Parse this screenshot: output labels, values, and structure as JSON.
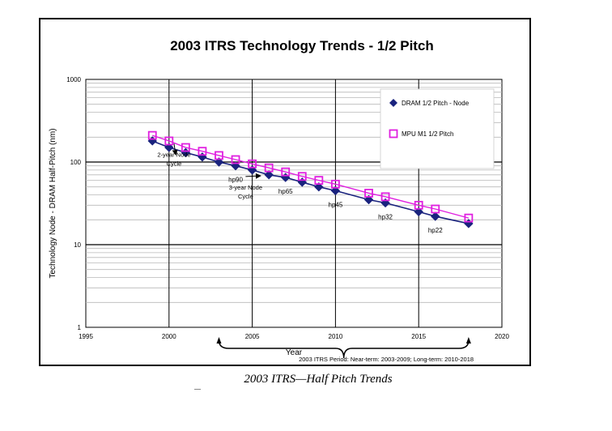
{
  "caption": "2003 ITRS—Half Pitch Trends",
  "chart_data": {
    "type": "line",
    "title": "2003 ITRS Technology Trends - 1/2 Pitch",
    "xlabel": "Year",
    "ylabel": "Technology Node - DRAM Half-Pitch (nm)",
    "xlim": [
      1995,
      2020
    ],
    "ylim": [
      1,
      1000
    ],
    "yscale": "log",
    "x_ticks": [
      "1995",
      "2000",
      "2005",
      "2010",
      "2015",
      "2020"
    ],
    "y_ticks": [
      "1",
      "10",
      "100",
      "1000"
    ],
    "grid": true,
    "legend_position": "top-right",
    "series": [
      {
        "name": "DRAM 1/2 Pitch - Node",
        "color": "#1a237e",
        "marker": "diamond",
        "x": [
          1999,
          2000,
          2001,
          2002,
          2003,
          2004,
          2005,
          2006,
          2007,
          2008,
          2009,
          2010,
          2012,
          2013,
          2015,
          2016,
          2018
        ],
        "y": [
          180,
          150,
          130,
          115,
          100,
          90,
          80,
          70,
          65,
          57,
          50,
          45,
          35,
          32,
          25,
          22,
          18
        ]
      },
      {
        "name": "MPU M1 1/2 Pitch",
        "color": "#e020e0",
        "marker": "square",
        "x": [
          1999,
          2000,
          2001,
          2002,
          2003,
          2004,
          2005,
          2006,
          2007,
          2008,
          2009,
          2010,
          2012,
          2013,
          2015,
          2016,
          2018
        ],
        "y": [
          210,
          180,
          150,
          135,
          120,
          107,
          95,
          85,
          76,
          67,
          60,
          54,
          42,
          38,
          30,
          27,
          21
        ]
      }
    ],
    "annotations": [
      {
        "text": "hp90",
        "x": 2004,
        "y": 90
      },
      {
        "text": "hp65",
        "x": 2007,
        "y": 65
      },
      {
        "text": "hp45",
        "x": 2010,
        "y": 45
      },
      {
        "text": "hp32",
        "x": 2013,
        "y": 32
      },
      {
        "text": "hp22",
        "x": 2016,
        "y": 22
      },
      {
        "text_lines": [
          "2-year Node",
          "Cycle"
        ],
        "x": 2000.3,
        "y": 30
      },
      {
        "text_lines": [
          "3-year Node",
          "Cycle"
        ],
        "x": 2004.6,
        "y": 12
      }
    ],
    "period_note": "2003 ITRS Period: Near-term:  2003-2009; Long-term:  2010-2018",
    "period_brace": {
      "x_start": 2003,
      "x_end": 2018
    }
  }
}
